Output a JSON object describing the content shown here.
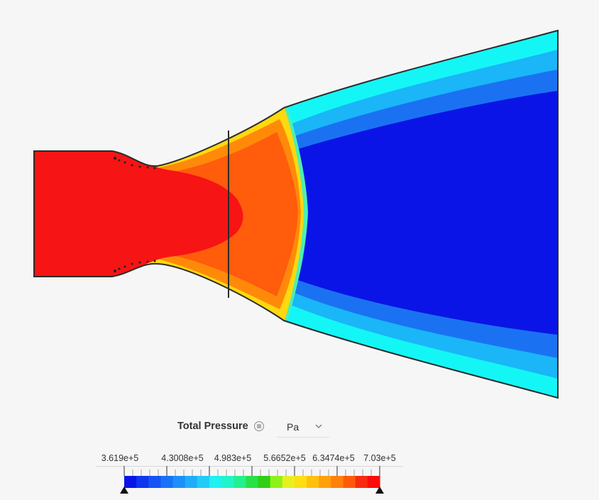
{
  "legend": {
    "title": "Total Pressure",
    "unit": "Pa",
    "tick_labels": [
      "3.619e+5",
      "4.3008e+5",
      "4.983e+5",
      "5.6652e+5",
      "6.3474e+5",
      "7.03e+5"
    ],
    "colors": [
      "#0a14e6",
      "#0e36ee",
      "#1454f4",
      "#1872f7",
      "#1c90f8",
      "#20adf8",
      "#24cbf6",
      "#1ff0f2",
      "#1ff5c8",
      "#22f08e",
      "#28e048",
      "#2fcf13",
      "#8ef21a",
      "#e6f020",
      "#ffde12",
      "#ffc00e",
      "#ffa00c",
      "#ff800a",
      "#ff5a0a",
      "#f82a10",
      "#ff0a0a"
    ]
  },
  "colors": {
    "background": "#f6f6f6",
    "red": "#f61414",
    "orange": "#ff5c0c",
    "yellow": "#ffd80f",
    "cyan": "#14f6f6",
    "blue": "#0a14e6"
  },
  "icons": {
    "menu": "hamburger-circle-icon",
    "dropdown": "chevron-down-icon",
    "min_marker": "triangle-up-icon",
    "max_marker": "triangle-up-icon"
  }
}
